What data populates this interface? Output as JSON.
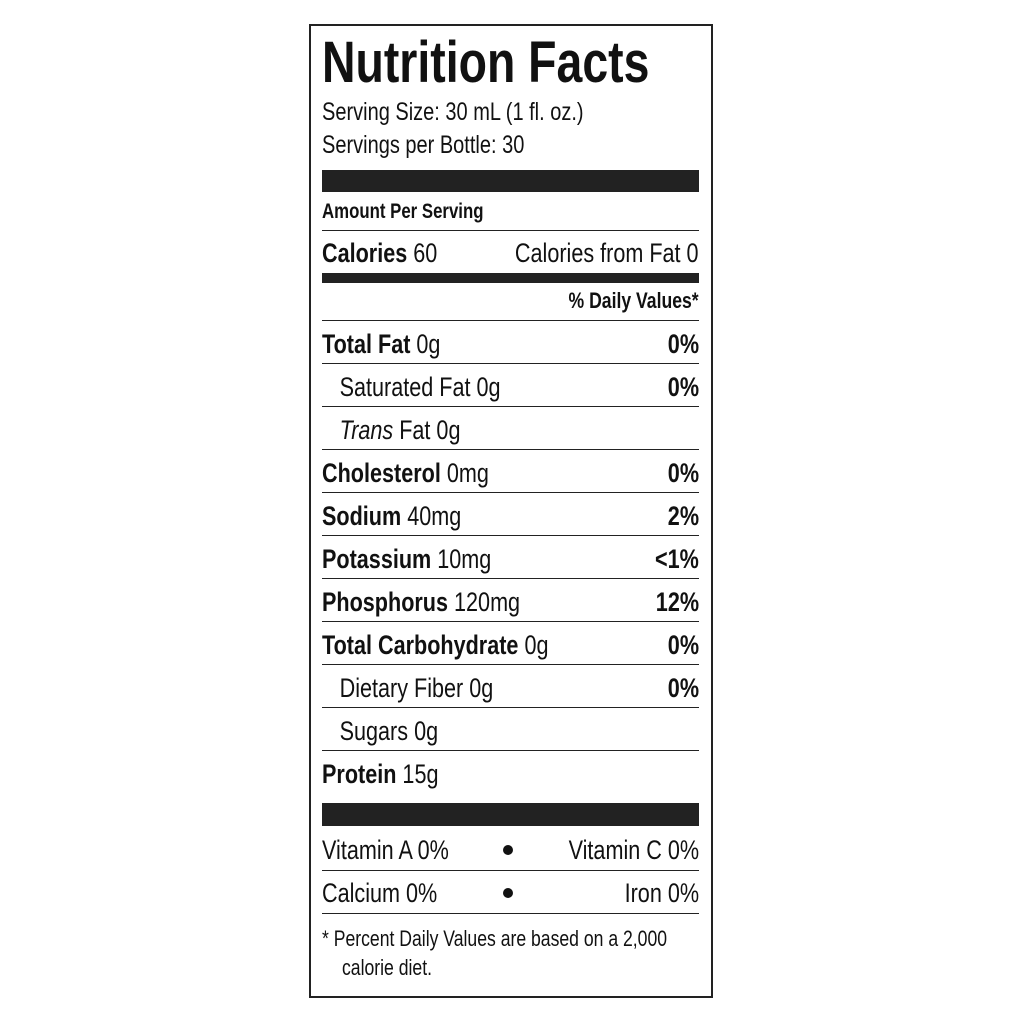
{
  "title": "Nutrition Facts",
  "serving_size": "Serving Size: 30 mL (1 fl. oz.)",
  "servings_per": "Servings per Bottle: 30",
  "amount_per_serving": "Amount Per Serving",
  "calories": {
    "label": "Calories",
    "value": "60",
    "from_fat": "Calories from Fat 0"
  },
  "daily_values_header": "% Daily Values*",
  "nutrients": [
    {
      "name": "Total Fat",
      "amount": "0g",
      "dv": "0%"
    },
    {
      "name": "Saturated Fat",
      "amount": "0g",
      "dv": "0%"
    },
    {
      "name": "Trans",
      "amount": "Fat 0g",
      "dv": ""
    },
    {
      "name": "Cholesterol",
      "amount": "0mg",
      "dv": "0%"
    },
    {
      "name": "Sodium",
      "amount": "40mg",
      "dv": "2%"
    },
    {
      "name": "Potassium",
      "amount": "10mg",
      "dv": "<1%"
    },
    {
      "name": "Phosphorus",
      "amount": "120mg",
      "dv": "12%"
    },
    {
      "name": "Total Carbohydrate",
      "amount": "0g",
      "dv": "0%"
    },
    {
      "name": "Dietary Fiber",
      "amount": "0g",
      "dv": "0%"
    },
    {
      "name": "Sugars",
      "amount": "0g",
      "dv": ""
    },
    {
      "name": "Protein",
      "amount": "15g",
      "dv": ""
    }
  ],
  "vitamins": [
    {
      "left": "Vitamin A 0%",
      "right": "Vitamin C 0%"
    },
    {
      "left": "Calcium 0%",
      "right": "Iron 0%"
    }
  ],
  "footnote": [
    "*  Percent Daily Values are based on a 2,000",
    "calorie diet."
  ]
}
